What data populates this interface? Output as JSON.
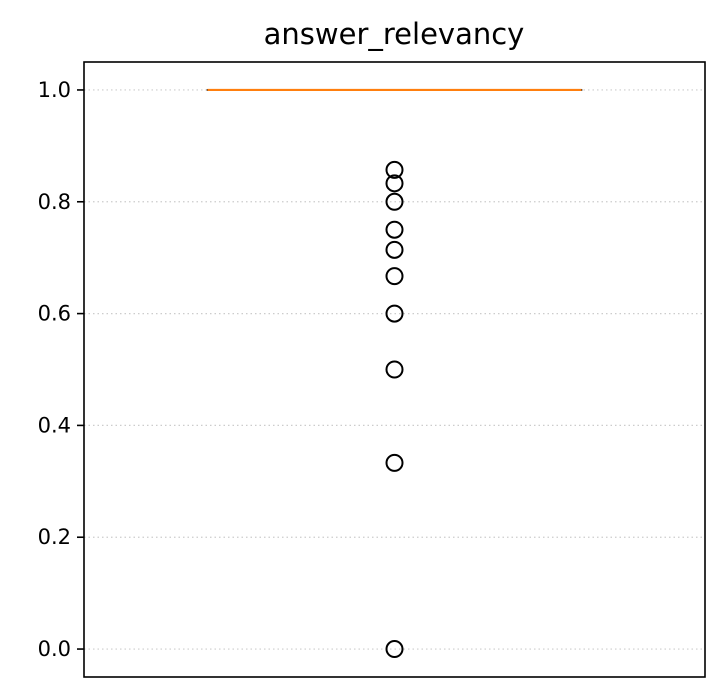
{
  "chart_data": {
    "type": "box",
    "title": "answer_relevancy",
    "xlabel": "",
    "ylabel": "",
    "ylim": [
      -0.05,
      1.05
    ],
    "yticks": [
      0.0,
      0.2,
      0.4,
      0.6,
      0.8,
      1.0
    ],
    "ytick_labels": [
      "0.0",
      "0.2",
      "0.4",
      "0.6",
      "0.8",
      "1.0"
    ],
    "grid": "horizontal dotted",
    "box": {
      "q1": 1.0,
      "median": 1.0,
      "q3": 1.0,
      "whisker_low": 1.0,
      "whisker_high": 1.0
    },
    "outliers": [
      0.857,
      0.833,
      0.8,
      0.75,
      0.714,
      0.667,
      0.6,
      0.5,
      0.333,
      0.0
    ],
    "colors": {
      "median": "#ff7f0e",
      "box": "#000000",
      "outlier": "#000000",
      "grid": "#cccccc"
    }
  }
}
